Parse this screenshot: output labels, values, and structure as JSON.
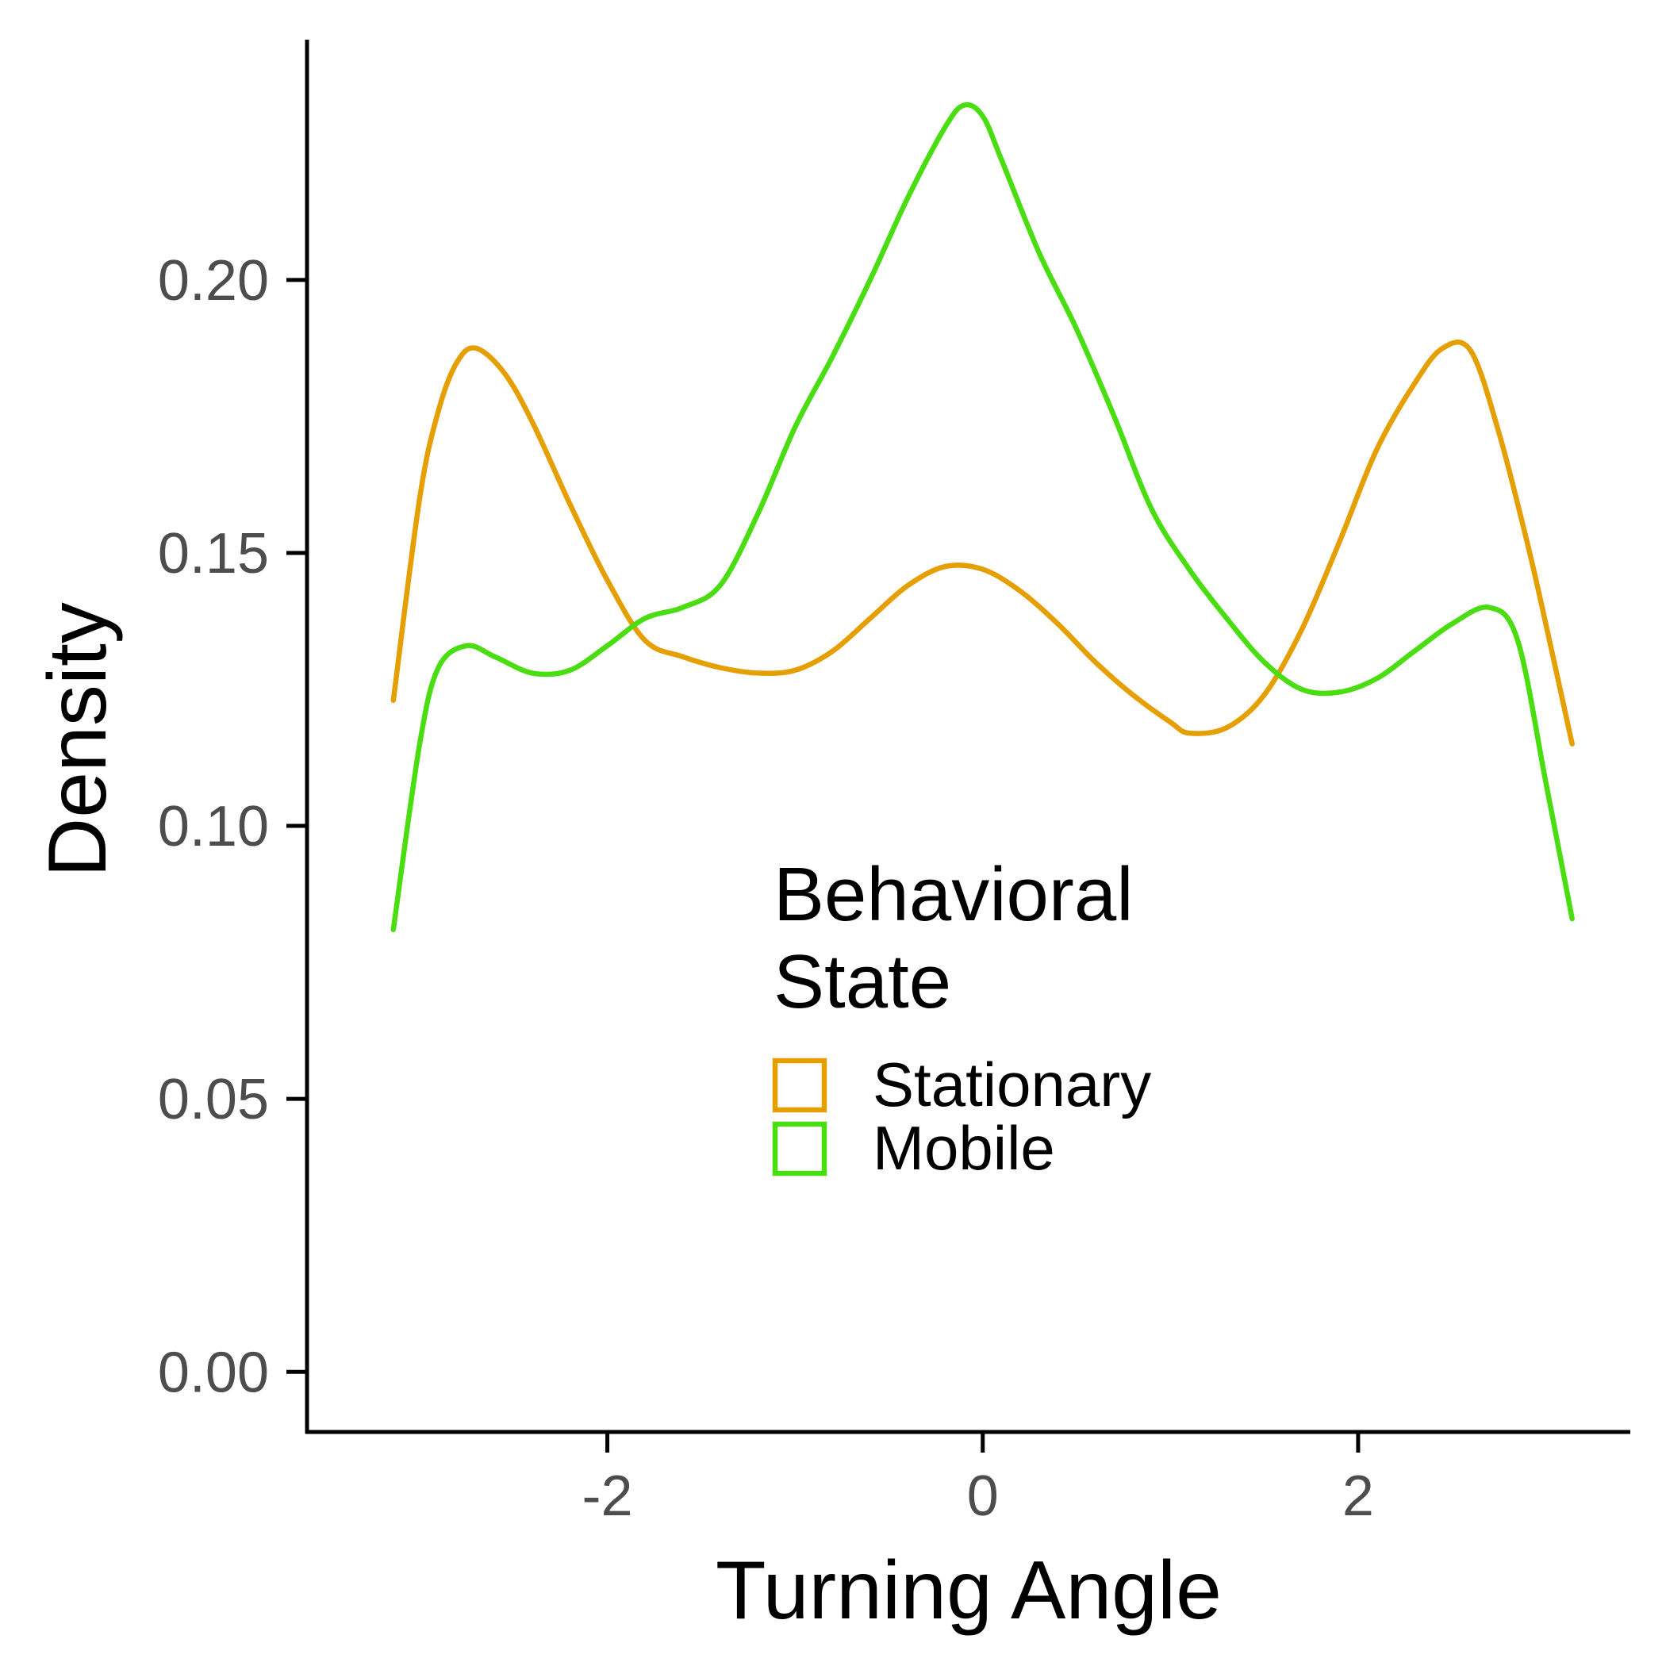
{
  "chart_data": {
    "type": "line",
    "xlabel": "Turning Angle",
    "ylabel": "Density",
    "xlim": [
      -3.6,
      3.45
    ],
    "ylim": [
      -0.011,
      0.244
    ],
    "x_ticks": [
      -2,
      0,
      2
    ],
    "x_tick_labels": [
      "-2",
      "0",
      "2"
    ],
    "y_ticks": [
      0.0,
      0.05,
      0.1,
      0.15,
      0.2
    ],
    "y_tick_labels": [
      "0.00",
      "0.05",
      "0.10",
      "0.15",
      "0.20"
    ],
    "grid": false,
    "legend": {
      "title_lines": [
        "Behavioral",
        "State"
      ],
      "placement": "center-right"
    },
    "series": [
      {
        "name": "Stationary",
        "color": "#E69F00",
        "x": [
          -3.14,
          -3.0,
          -2.9,
          -2.8,
          -2.7,
          -2.55,
          -2.4,
          -2.2,
          -2.0,
          -1.8,
          -1.6,
          -1.4,
          -1.2,
          -1.0,
          -0.8,
          -0.6,
          -0.4,
          -0.2,
          0.0,
          0.2,
          0.4,
          0.6,
          0.8,
          1.0,
          1.1,
          1.3,
          1.5,
          1.7,
          1.9,
          2.1,
          2.3,
          2.45,
          2.6,
          2.75,
          2.9,
          3.0,
          3.14
        ],
        "y": [
          0.123,
          0.16,
          0.176,
          0.185,
          0.1875,
          0.183,
          0.174,
          0.159,
          0.145,
          0.134,
          0.131,
          0.129,
          0.128,
          0.1285,
          0.132,
          0.138,
          0.144,
          0.1475,
          0.147,
          0.143,
          0.137,
          0.13,
          0.124,
          0.119,
          0.117,
          0.118,
          0.124,
          0.136,
          0.152,
          0.169,
          0.181,
          0.1875,
          0.187,
          0.172,
          0.152,
          0.137,
          0.115
        ]
      },
      {
        "name": "Mobile",
        "color": "#4ADE12",
        "x": [
          -3.14,
          -3.0,
          -2.9,
          -2.75,
          -2.6,
          -2.4,
          -2.2,
          -2.0,
          -1.8,
          -1.6,
          -1.4,
          -1.2,
          -1.0,
          -0.8,
          -0.6,
          -0.4,
          -0.2,
          -0.1,
          0.0,
          0.1,
          0.3,
          0.5,
          0.7,
          0.9,
          1.1,
          1.3,
          1.5,
          1.7,
          1.9,
          2.1,
          2.3,
          2.5,
          2.7,
          2.85,
          3.0,
          3.14
        ],
        "y": [
          0.081,
          0.115,
          0.129,
          0.133,
          0.131,
          0.128,
          0.1285,
          0.133,
          0.138,
          0.14,
          0.144,
          0.157,
          0.173,
          0.186,
          0.2,
          0.215,
          0.228,
          0.232,
          0.23,
          0.222,
          0.205,
          0.191,
          0.175,
          0.158,
          0.147,
          0.138,
          0.13,
          0.125,
          0.1245,
          0.127,
          0.132,
          0.137,
          0.14,
          0.134,
          0.108,
          0.083
        ]
      }
    ]
  }
}
